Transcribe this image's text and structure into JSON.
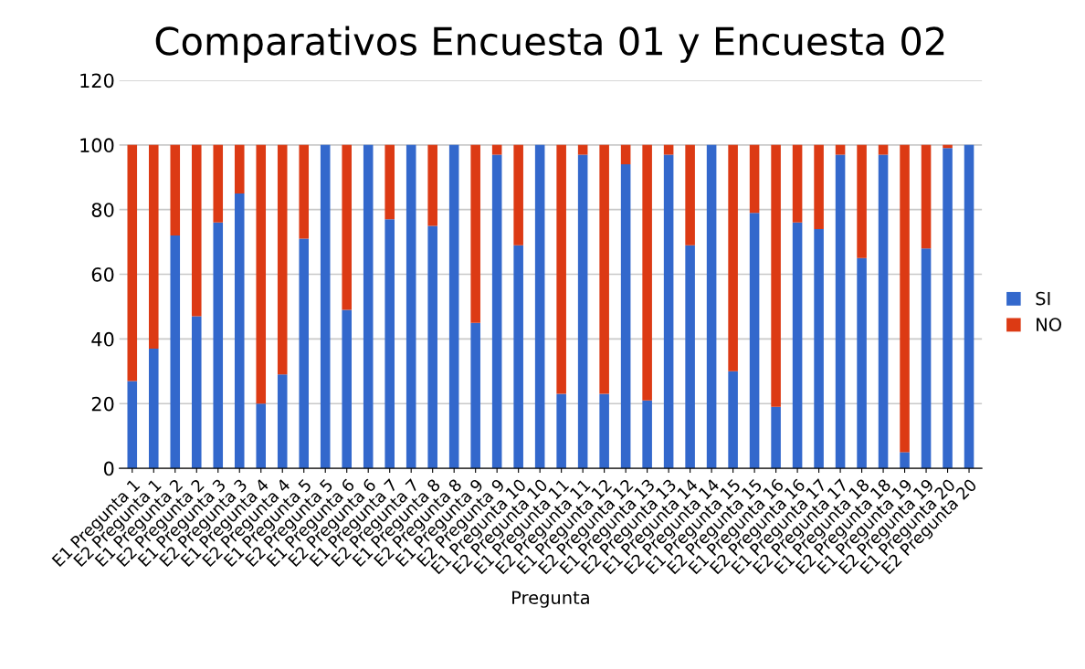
{
  "chart_data": {
    "type": "bar",
    "title": "Comparativos Encuesta 01 y Encuesta 02",
    "xlabel": "Pregunta",
    "stacked": true,
    "grid": "y",
    "legend": "right",
    "categories": [
      "E1 Pregunta 1",
      "E2 Pregunta 1",
      "E1 Pregunta 2",
      "E2 Pregunta 2",
      "E1 Pregunta 3",
      "E2 Pregunta 3",
      "E1 Pregunta 4",
      "E2 Pregunta 4",
      "E1 Pregunta 5",
      "E2 Pregunta 5",
      "E1 Pregunta 6",
      "E2 Pregunta 6",
      "E1 Pregunta 7",
      "E2 Pregunta 7",
      "E1 Pregunta 8",
      "E2 Pregunta 8",
      "E1 Pregunta 9",
      "E2 Pregunta 9",
      "E1 Pregunta 10",
      "E2 Pregunta 10",
      "E1 Pregunta 11",
      "E2 Pregunta 11",
      "E1 Pregunta 12",
      "E2 Pregunta 12",
      "E1 Pregunta 13",
      "E2 Pregunta 13",
      "E1 Pregunta 14",
      "E2 Pregunta 14",
      "E1 Pregunta 15",
      "E2 Pregunta 15",
      "E1 Pregunta 16",
      "E2 Pregunta 16",
      "E1 Pregunta 17",
      "E2 Pregunta 17",
      "E1 Pregunta 18",
      "E2 Pregunta 18",
      "E1 Pregunta 19",
      "E2 Pregunta 19",
      "E1 Pregunta 20",
      "E2 Pregunta 20"
    ],
    "series": [
      {
        "name": "SI",
        "color": "#3368cc",
        "values": [
          27,
          37,
          72,
          47,
          76,
          85,
          20,
          29,
          71,
          100,
          49,
          100,
          77,
          100,
          75,
          100,
          45,
          97,
          69,
          100,
          23,
          97,
          23,
          94,
          21,
          97,
          69,
          100,
          30,
          79,
          19,
          76,
          74,
          97,
          65,
          97,
          5,
          68,
          99,
          100
        ]
      },
      {
        "name": "NO",
        "color": "#dc3a14",
        "values": [
          73,
          63,
          28,
          53,
          24,
          15,
          80,
          71,
          29,
          0,
          51,
          0,
          23,
          0,
          25,
          0,
          55,
          3,
          31,
          0,
          77,
          3,
          77,
          6,
          79,
          3,
          31,
          0,
          70,
          21,
          81,
          24,
          26,
          3,
          35,
          3,
          95,
          32,
          1,
          0
        ]
      }
    ],
    "ylim": [
      0,
      120
    ],
    "yticks": [
      0,
      20,
      40,
      60,
      80,
      100,
      120
    ]
  }
}
